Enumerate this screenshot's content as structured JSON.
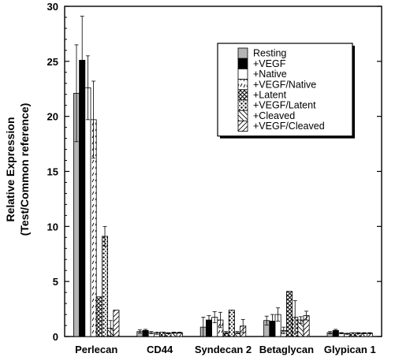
{
  "chart_data": {
    "type": "bar",
    "title": "",
    "xlabel": "",
    "ylabel": "Relative Expression",
    "ylabel2": "(Test/Common reference)",
    "ylim": [
      0,
      30
    ],
    "yticks": [
      0,
      5,
      10,
      15,
      20,
      25,
      30
    ],
    "grid": false,
    "legend_position": "top-right",
    "categories": [
      "Perlecan",
      "CD44",
      "Syndecan 2",
      "Betaglycan",
      "Glypican 1"
    ],
    "series": [
      {
        "name": "Resting",
        "pattern": "gray",
        "values": [
          22.1,
          0.45,
          0.85,
          1.45,
          0.35
        ],
        "errors": [
          4.4,
          0.15,
          0.9,
          0.4,
          0.1
        ]
      },
      {
        "name": "+VEGF",
        "pattern": "black",
        "values": [
          25.1,
          0.55,
          1.5,
          1.4,
          0.55
        ],
        "errors": [
          4.0,
          0.1,
          0.4,
          0.6,
          0.1
        ]
      },
      {
        "name": "+Native",
        "pattern": "white",
        "values": [
          22.6,
          0.35,
          1.75,
          2.0,
          0.3
        ],
        "errors": [
          2.9,
          0.1,
          0.5,
          0.6,
          0.05
        ]
      },
      {
        "name": "+VEGF/Native",
        "pattern": "ticks",
        "values": [
          19.7,
          0.3,
          1.5,
          0.55,
          0.25
        ],
        "errors": [
          3.5,
          0.1,
          0.7,
          0.3,
          0.05
        ]
      },
      {
        "name": "+Latent",
        "pattern": "crosshatch",
        "values": [
          3.6,
          0.4,
          0.35,
          4.1,
          0.35
        ],
        "errors": [
          0,
          0,
          0.1,
          0,
          0
        ]
      },
      {
        "name": "+VEGF/Latent",
        "pattern": "dots",
        "values": [
          9.1,
          0.3,
          2.4,
          1.75,
          0.3
        ],
        "errors": [
          0.9,
          0.05,
          0,
          1.5,
          0.05
        ]
      },
      {
        "name": "+Cleaved",
        "pattern": "backslash",
        "values": [
          0.75,
          0.35,
          0.35,
          1.5,
          0.3
        ],
        "errors": [
          0.7,
          0.05,
          0.1,
          0.3,
          0.05
        ]
      },
      {
        "name": "+VEGF/Cleaved",
        "pattern": "slash",
        "values": [
          2.4,
          0.35,
          0.95,
          1.9,
          0.3
        ],
        "errors": [
          0,
          0.05,
          0.6,
          0.4,
          0.05
        ]
      }
    ]
  }
}
